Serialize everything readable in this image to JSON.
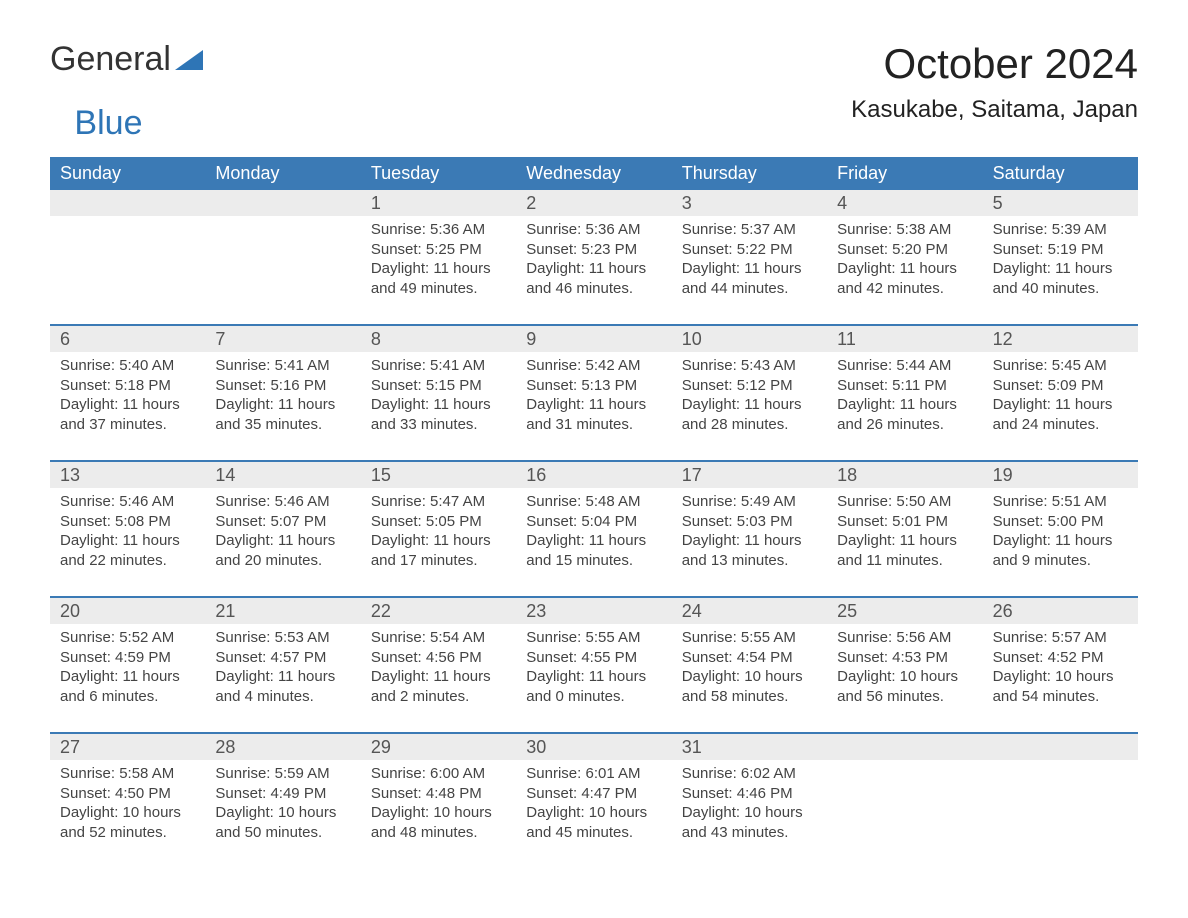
{
  "brand": {
    "part1": "General",
    "part2": "Blue"
  },
  "colors": {
    "header_bg": "#3b7ab5",
    "header_text": "#ffffff",
    "daynum_bg": "#ececec",
    "week_border": "#3b7ab5",
    "body_text": "#444444",
    "daynum_text": "#555555",
    "page_bg": "#ffffff",
    "brand_blue": "#2e75b6",
    "brand_dark": "#333333"
  },
  "typography": {
    "month_title_size_pt": 32,
    "location_size_pt": 18,
    "dow_size_pt": 14,
    "daynum_size_pt": 14,
    "body_size_pt": 11
  },
  "title": "October 2024",
  "location": "Kasukabe, Saitama, Japan",
  "dow": [
    "Sunday",
    "Monday",
    "Tuesday",
    "Wednesday",
    "Thursday",
    "Friday",
    "Saturday"
  ],
  "line_labels": {
    "sunrise": "Sunrise: ",
    "sunset": "Sunset: ",
    "daylight": "Daylight: "
  },
  "weeks": [
    [
      null,
      null,
      {
        "n": "1",
        "sunrise": "5:36 AM",
        "sunset": "5:25 PM",
        "daylight": "11 hours and 49 minutes."
      },
      {
        "n": "2",
        "sunrise": "5:36 AM",
        "sunset": "5:23 PM",
        "daylight": "11 hours and 46 minutes."
      },
      {
        "n": "3",
        "sunrise": "5:37 AM",
        "sunset": "5:22 PM",
        "daylight": "11 hours and 44 minutes."
      },
      {
        "n": "4",
        "sunrise": "5:38 AM",
        "sunset": "5:20 PM",
        "daylight": "11 hours and 42 minutes."
      },
      {
        "n": "5",
        "sunrise": "5:39 AM",
        "sunset": "5:19 PM",
        "daylight": "11 hours and 40 minutes."
      }
    ],
    [
      {
        "n": "6",
        "sunrise": "5:40 AM",
        "sunset": "5:18 PM",
        "daylight": "11 hours and 37 minutes."
      },
      {
        "n": "7",
        "sunrise": "5:41 AM",
        "sunset": "5:16 PM",
        "daylight": "11 hours and 35 minutes."
      },
      {
        "n": "8",
        "sunrise": "5:41 AM",
        "sunset": "5:15 PM",
        "daylight": "11 hours and 33 minutes."
      },
      {
        "n": "9",
        "sunrise": "5:42 AM",
        "sunset": "5:13 PM",
        "daylight": "11 hours and 31 minutes."
      },
      {
        "n": "10",
        "sunrise": "5:43 AM",
        "sunset": "5:12 PM",
        "daylight": "11 hours and 28 minutes."
      },
      {
        "n": "11",
        "sunrise": "5:44 AM",
        "sunset": "5:11 PM",
        "daylight": "11 hours and 26 minutes."
      },
      {
        "n": "12",
        "sunrise": "5:45 AM",
        "sunset": "5:09 PM",
        "daylight": "11 hours and 24 minutes."
      }
    ],
    [
      {
        "n": "13",
        "sunrise": "5:46 AM",
        "sunset": "5:08 PM",
        "daylight": "11 hours and 22 minutes."
      },
      {
        "n": "14",
        "sunrise": "5:46 AM",
        "sunset": "5:07 PM",
        "daylight": "11 hours and 20 minutes."
      },
      {
        "n": "15",
        "sunrise": "5:47 AM",
        "sunset": "5:05 PM",
        "daylight": "11 hours and 17 minutes."
      },
      {
        "n": "16",
        "sunrise": "5:48 AM",
        "sunset": "5:04 PM",
        "daylight": "11 hours and 15 minutes."
      },
      {
        "n": "17",
        "sunrise": "5:49 AM",
        "sunset": "5:03 PM",
        "daylight": "11 hours and 13 minutes."
      },
      {
        "n": "18",
        "sunrise": "5:50 AM",
        "sunset": "5:01 PM",
        "daylight": "11 hours and 11 minutes."
      },
      {
        "n": "19",
        "sunrise": "5:51 AM",
        "sunset": "5:00 PM",
        "daylight": "11 hours and 9 minutes."
      }
    ],
    [
      {
        "n": "20",
        "sunrise": "5:52 AM",
        "sunset": "4:59 PM",
        "daylight": "11 hours and 6 minutes."
      },
      {
        "n": "21",
        "sunrise": "5:53 AM",
        "sunset": "4:57 PM",
        "daylight": "11 hours and 4 minutes."
      },
      {
        "n": "22",
        "sunrise": "5:54 AM",
        "sunset": "4:56 PM",
        "daylight": "11 hours and 2 minutes."
      },
      {
        "n": "23",
        "sunrise": "5:55 AM",
        "sunset": "4:55 PM",
        "daylight": "11 hours and 0 minutes."
      },
      {
        "n": "24",
        "sunrise": "5:55 AM",
        "sunset": "4:54 PM",
        "daylight": "10 hours and 58 minutes."
      },
      {
        "n": "25",
        "sunrise": "5:56 AM",
        "sunset": "4:53 PM",
        "daylight": "10 hours and 56 minutes."
      },
      {
        "n": "26",
        "sunrise": "5:57 AM",
        "sunset": "4:52 PM",
        "daylight": "10 hours and 54 minutes."
      }
    ],
    [
      {
        "n": "27",
        "sunrise": "5:58 AM",
        "sunset": "4:50 PM",
        "daylight": "10 hours and 52 minutes."
      },
      {
        "n": "28",
        "sunrise": "5:59 AM",
        "sunset": "4:49 PM",
        "daylight": "10 hours and 50 minutes."
      },
      {
        "n": "29",
        "sunrise": "6:00 AM",
        "sunset": "4:48 PM",
        "daylight": "10 hours and 48 minutes."
      },
      {
        "n": "30",
        "sunrise": "6:01 AM",
        "sunset": "4:47 PM",
        "daylight": "10 hours and 45 minutes."
      },
      {
        "n": "31",
        "sunrise": "6:02 AM",
        "sunset": "4:46 PM",
        "daylight": "10 hours and 43 minutes."
      },
      null,
      null
    ]
  ]
}
